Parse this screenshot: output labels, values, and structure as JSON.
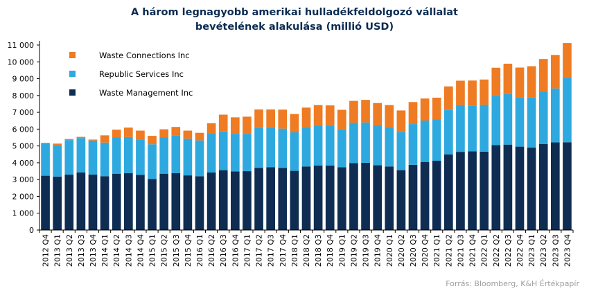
{
  "chart_data": {
    "type": "bar",
    "stacked": true,
    "title": [
      "A három legnagyobb amerikai hulladékfeldolgozó vállalat",
      "bevételének  alakulása (millió USD)"
    ],
    "categories": [
      "2012 Q4",
      "2013 Q1",
      "2013 Q2",
      "2013 Q3",
      "2013 Q4",
      "2014 Q1",
      "2014 Q2",
      "2014 Q3",
      "2014 Q4",
      "2015 Q1",
      "2015 Q2",
      "2015 Q3",
      "2015 Q4",
      "2016 Q1",
      "2016 Q2",
      "2016 Q3",
      "2016 Q4",
      "2017 Q1",
      "2017 Q2",
      "2017 Q3",
      "2017 Q4",
      "2018 Q1",
      "2018 Q2",
      "2018 Q3",
      "2018 Q4",
      "2019 Q1",
      "2019 Q2",
      "2019 Q3",
      "2019 Q4",
      "2020 Q1",
      "2020 Q2",
      "2020 Q3",
      "2020 Q4",
      "2021 Q1",
      "2021 Q2",
      "2021 Q3",
      "2021 Q4",
      "2022 Q1",
      "2022 Q2",
      "2022 Q3",
      "2022 Q4",
      "2023 Q1",
      "2023 Q2",
      "2023 Q3",
      "2023 Q4"
    ],
    "series": [
      {
        "name": "Waste Management Inc",
        "color": "#0f2d52",
        "values": [
          3230,
          3180,
          3300,
          3420,
          3300,
          3200,
          3350,
          3380,
          3280,
          3040,
          3350,
          3380,
          3250,
          3200,
          3420,
          3560,
          3480,
          3500,
          3700,
          3730,
          3690,
          3520,
          3780,
          3840,
          3840,
          3730,
          3980,
          4000,
          3850,
          3780,
          3560,
          3880,
          4050,
          4120,
          4500,
          4650,
          4680,
          4660,
          5050,
          5080,
          4960,
          4900,
          5120,
          5210,
          5220
        ]
      },
      {
        "name": "Republic Services Inc",
        "color": "#2ea9e0",
        "values": [
          1950,
          1880,
          2050,
          2050,
          2020,
          2000,
          2150,
          2150,
          2100,
          2060,
          2150,
          2250,
          2180,
          2130,
          2330,
          2300,
          2240,
          2220,
          2390,
          2380,
          2340,
          2290,
          2350,
          2390,
          2390,
          2260,
          2400,
          2400,
          2370,
          2320,
          2280,
          2420,
          2460,
          2450,
          2640,
          2780,
          2710,
          2780,
          2930,
          3000,
          2940,
          3000,
          3100,
          3210,
          3840
        ]
      },
      {
        "name": "Waste Connections Inc",
        "color": "#ef7b22",
        "values": [
          0,
          80,
          60,
          70,
          60,
          430,
          470,
          560,
          530,
          500,
          490,
          500,
          480,
          450,
          600,
          1000,
          980,
          1020,
          1080,
          1060,
          1130,
          1090,
          1150,
          1200,
          1180,
          1160,
          1300,
          1340,
          1330,
          1330,
          1270,
          1310,
          1310,
          1300,
          1400,
          1450,
          1500,
          1510,
          1670,
          1810,
          1760,
          1840,
          1950,
          1990,
          2060
        ]
      }
    ],
    "ylim": [
      0,
      11000
    ],
    "yticks": [
      "0",
      "1 000",
      "2 000",
      "3 000",
      "4 000",
      "5 000",
      "6 000",
      "7 000",
      "8 000",
      "9 000",
      "10 000",
      "11 000"
    ],
    "legend": {
      "position": "top-left",
      "order": [
        "Waste Connections Inc",
        "Republic Services Inc",
        "Waste Management Inc"
      ]
    },
    "grid": false,
    "source": "Forrás: Bloomberg, K&H Értékpapír"
  }
}
